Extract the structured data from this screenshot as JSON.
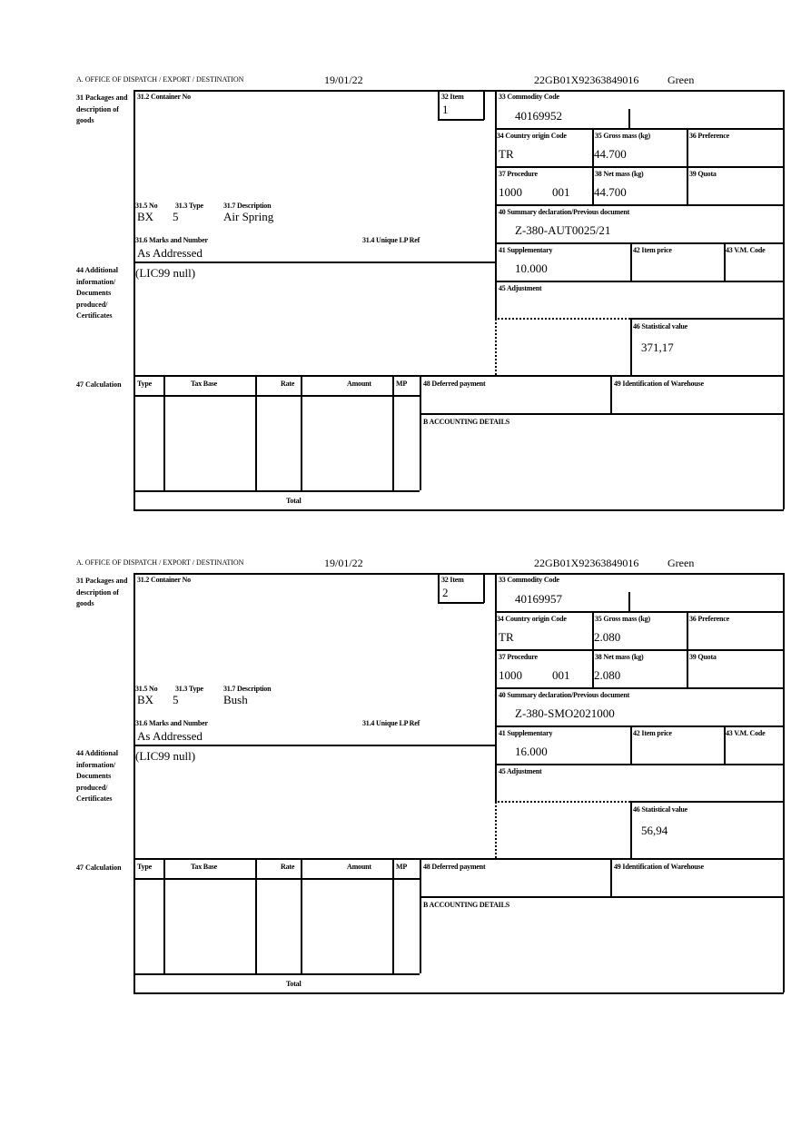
{
  "labels": {
    "office": "A. OFFICE OF DISPATCH / EXPORT / DESTINATION",
    "packages": "31 Packages and description of goods",
    "container": "31.2 Container No",
    "item": "32 Item",
    "commodity": "33 Commodity Code",
    "country": "34 Country origin Code",
    "gross": "35 Gross mass (kg)",
    "preference": "36 Preference",
    "procedure": "37 Procedure",
    "net": "38 Net mass (kg)",
    "quota": "39 Quota",
    "summary": "40 Summary declaration/Previous document",
    "supplementary": "41 Supplementary",
    "item_price": "42 Item price",
    "vm_code": "43 V.M. Code",
    "adjustment": "45 Adjustment",
    "statistical": "46 Statistical value",
    "no": "31.5 No",
    "type": "31.3 Type",
    "description": "31.7 Description",
    "marks": "31.6 Marks and Number",
    "unique_ref": "31.4 Unique LP Ref",
    "additional": "44 Additional information/ Documents produced/ Certificates",
    "calculation": "47 Calculation",
    "col_type": "Type",
    "col_tax_base": "Tax Base",
    "col_rate": "Rate",
    "col_amount": "Amount",
    "col_mp": "MP",
    "total": "Total",
    "deferred": "48 Deferred payment",
    "warehouse": "49 Identification of Warehouse",
    "accounting": "B ACCOUNTING DETAILS"
  },
  "forms": [
    {
      "date": "19/01/22",
      "reference": "22GB01X92363849016",
      "route": "Green",
      "item": "1",
      "commodity_code": "40169952",
      "country": "TR",
      "gross_mass": "44.700",
      "procedure": "1000",
      "procedure_sub": "001",
      "net_mass": "44.700",
      "summary_doc": "Z-380-AUT0025/21",
      "supplementary": "10.000",
      "statistical_value": "371,17",
      "pkg_no": "BX",
      "pkg_type": "5",
      "description": "Air Spring",
      "marks": "As Addressed",
      "additional_info": "(LIC99 null)"
    },
    {
      "date": "19/01/22",
      "reference": "22GB01X92363849016",
      "route": "Green",
      "item": "2",
      "commodity_code": "40169957",
      "country": "TR",
      "gross_mass": "2.080",
      "procedure": "1000",
      "procedure_sub": "001",
      "net_mass": "2.080",
      "summary_doc": "Z-380-SMO2021000",
      "supplementary": "16.000",
      "statistical_value": "56,94",
      "pkg_no": "BX",
      "pkg_type": "5",
      "description": "Bush",
      "marks": "As Addressed",
      "additional_info": "(LIC99 null)"
    }
  ]
}
